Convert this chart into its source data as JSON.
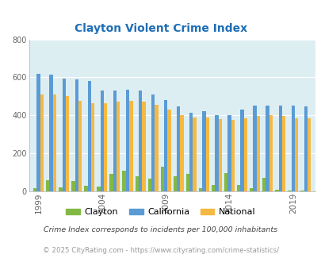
{
  "title": "Clayton Violent Crime Index",
  "years": [
    1999,
    2000,
    2001,
    2002,
    2003,
    2004,
    2005,
    2006,
    2007,
    2008,
    2009,
    2010,
    2011,
    2012,
    2013,
    2014,
    2015,
    2016,
    2017,
    2018,
    2019,
    2020
  ],
  "clayton": [
    15,
    60,
    20,
    55,
    30,
    25,
    90,
    110,
    80,
    65,
    130,
    80,
    90,
    15,
    35,
    95,
    35,
    15,
    70,
    10,
    5,
    5
  ],
  "california": [
    620,
    615,
    595,
    590,
    580,
    530,
    530,
    535,
    530,
    510,
    480,
    445,
    415,
    420,
    400,
    400,
    430,
    450,
    450,
    450,
    450,
    445
  ],
  "national": [
    510,
    510,
    500,
    475,
    465,
    465,
    470,
    475,
    470,
    455,
    430,
    400,
    390,
    390,
    380,
    375,
    385,
    395,
    400,
    395,
    385,
    385
  ],
  "ylim": [
    0,
    800
  ],
  "yticks": [
    0,
    200,
    400,
    600,
    800
  ],
  "xtick_labels": [
    "1999",
    "2004",
    "2009",
    "2014",
    "2019"
  ],
  "xtick_positions": [
    0,
    5,
    10,
    15,
    20
  ],
  "bar_width": 0.27,
  "clayton_color": "#82b944",
  "california_color": "#5b9bd5",
  "national_color": "#f5b942",
  "bg_color": "#ddeef3",
  "grid_color": "#ffffff",
  "title_color": "#1f6eb5",
  "legend_labels": [
    "Clayton",
    "California",
    "National"
  ],
  "footnote1": "Crime Index corresponds to incidents per 100,000 inhabitants",
  "footnote2": "© 2025 CityRating.com - https://www.cityrating.com/crime-statistics/",
  "footnote_color1": "#444444",
  "footnote_color2": "#999999"
}
